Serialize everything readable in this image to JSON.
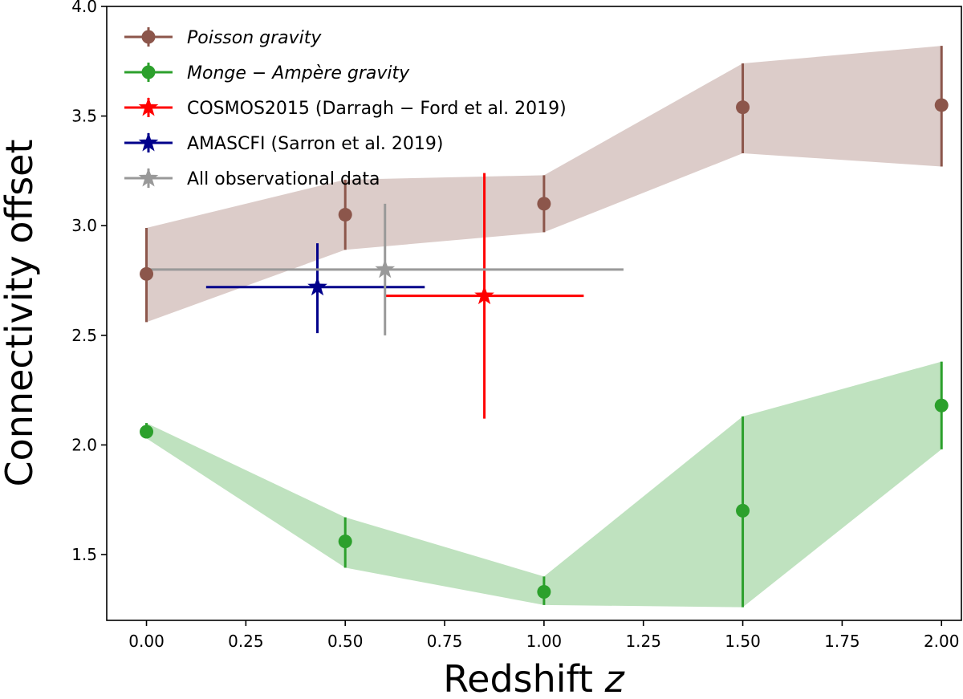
{
  "chart_data": {
    "type": "scatter",
    "xlabel": "Redshift",
    "xlabel_var": "z",
    "ylabel": "Connectivity offset",
    "xlim": [
      -0.1,
      2.05
    ],
    "ylim": [
      1.2,
      4.0
    ],
    "x_ticks": [
      "0.00",
      "0.25",
      "0.50",
      "0.75",
      "1.00",
      "1.25",
      "1.50",
      "1.75",
      "2.00"
    ],
    "y_ticks": [
      "1.5",
      "2.0",
      "2.5",
      "3.0",
      "3.5",
      "4.0"
    ],
    "legend": {
      "placement": "top-left"
    },
    "series": [
      {
        "name": "Poisson gravity",
        "italic": true,
        "color": "#8c564b",
        "marker": "circle",
        "points": [
          {
            "x": 0.0,
            "y": 2.78,
            "yerr_lo": 2.56,
            "yerr_hi": 2.99
          },
          {
            "x": 0.5,
            "y": 3.05,
            "yerr_lo": 2.89,
            "yerr_hi": 3.21
          },
          {
            "x": 1.0,
            "y": 3.1,
            "yerr_lo": 2.97,
            "yerr_hi": 3.23
          },
          {
            "x": 1.5,
            "y": 3.54,
            "yerr_lo": 3.33,
            "yerr_hi": 3.74
          },
          {
            "x": 2.0,
            "y": 3.55,
            "yerr_lo": 3.27,
            "yerr_hi": 3.82
          }
        ]
      },
      {
        "name": "Monge − Ampère gravity",
        "italic": true,
        "color": "#2ca02c",
        "marker": "circle",
        "points": [
          {
            "x": 0.0,
            "y": 2.06,
            "yerr_lo": 2.03,
            "yerr_hi": 2.1
          },
          {
            "x": 0.5,
            "y": 1.56,
            "yerr_lo": 1.44,
            "yerr_hi": 1.67
          },
          {
            "x": 1.0,
            "y": 1.33,
            "yerr_lo": 1.27,
            "yerr_hi": 1.4
          },
          {
            "x": 1.5,
            "y": 1.7,
            "yerr_lo": 1.26,
            "yerr_hi": 2.13
          },
          {
            "x": 2.0,
            "y": 2.18,
            "yerr_lo": 1.98,
            "yerr_hi": 2.38
          }
        ]
      },
      {
        "name": "COSMOS2015 (Darragh − Ford et al.  2019)",
        "italic": false,
        "color": "#ff0000",
        "marker": "star",
        "points": [
          {
            "x": 0.85,
            "y": 2.68,
            "xerr_lo": 0.6,
            "xerr_hi": 1.1,
            "yerr_lo": 2.12,
            "yerr_hi": 3.24
          }
        ]
      },
      {
        "name": "AMASCFI (Sarron et al.  2019)",
        "italic": false,
        "color": "#00008b",
        "marker": "star",
        "points": [
          {
            "x": 0.43,
            "y": 2.72,
            "xerr_lo": 0.15,
            "xerr_hi": 0.7,
            "yerr_lo": 2.51,
            "yerr_hi": 2.92
          }
        ]
      },
      {
        "name": "All observational data",
        "italic": false,
        "color": "#999999",
        "marker": "star",
        "points": [
          {
            "x": 0.6,
            "y": 2.8,
            "xerr_lo": 0.0,
            "xerr_hi": 1.2,
            "yerr_lo": 2.5,
            "yerr_hi": 3.1
          }
        ]
      }
    ]
  }
}
